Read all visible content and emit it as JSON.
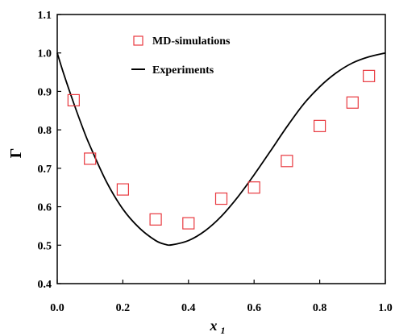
{
  "chart_data": {
    "type": "scatter",
    "xlabel": "x",
    "xlabel_subscript": "1",
    "ylabel": "Γ",
    "xlim": [
      0.0,
      1.0
    ],
    "ylim": [
      0.4,
      1.1
    ],
    "x_ticks": [
      "0.0",
      "0.2",
      "0.4",
      "0.6",
      "0.8",
      "1.0"
    ],
    "y_ticks": [
      "0.4",
      "0.5",
      "0.6",
      "0.7",
      "0.8",
      "0.9",
      "1.0",
      "1.1"
    ],
    "legend_position": "top-center",
    "grid": false,
    "series": [
      {
        "name": "MD-simulations",
        "kind": "markers",
        "marker": "open-square",
        "color": "#e8393f",
        "x": [
          0.05,
          0.1,
          0.2,
          0.3,
          0.4,
          0.5,
          0.6,
          0.7,
          0.8,
          0.9,
          0.95
        ],
        "y": [
          0.877,
          0.725,
          0.645,
          0.567,
          0.557,
          0.621,
          0.65,
          0.719,
          0.81,
          0.871,
          0.94
        ]
      },
      {
        "name": "Experiments",
        "kind": "line",
        "color": "#000000",
        "x": [
          0.0,
          0.02,
          0.05,
          0.08,
          0.1,
          0.15,
          0.2,
          0.25,
          0.3,
          0.33,
          0.35,
          0.4,
          0.45,
          0.5,
          0.55,
          0.6,
          0.65,
          0.7,
          0.75,
          0.8,
          0.85,
          0.9,
          0.95,
          1.0
        ],
        "y": [
          1.0,
          0.945,
          0.87,
          0.8,
          0.758,
          0.665,
          0.594,
          0.545,
          0.512,
          0.502,
          0.501,
          0.512,
          0.537,
          0.575,
          0.625,
          0.683,
          0.745,
          0.808,
          0.866,
          0.912,
          0.948,
          0.974,
          0.99,
          1.0
        ]
      }
    ]
  }
}
